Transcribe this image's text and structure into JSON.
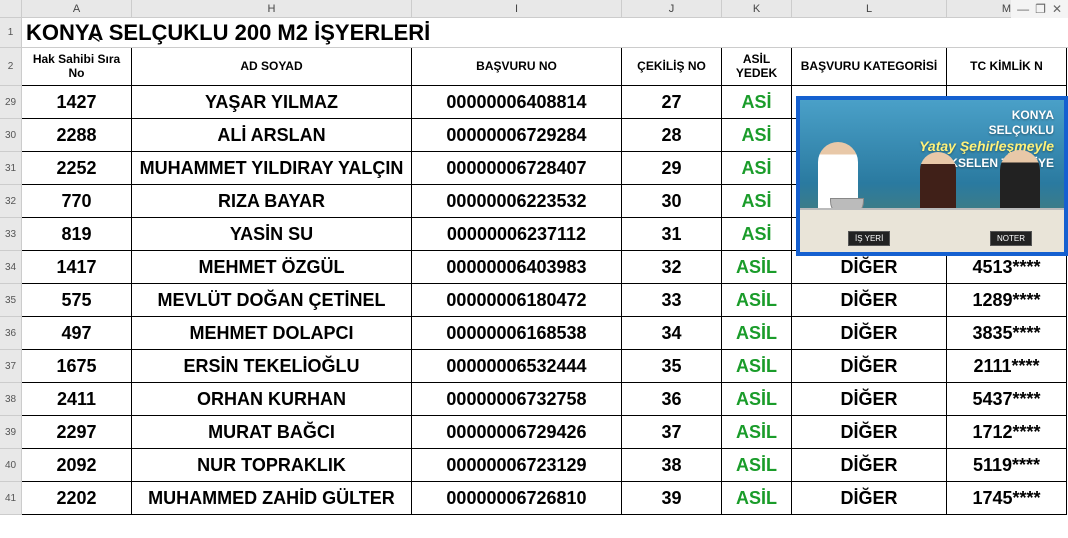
{
  "window": {
    "minimize": "—",
    "close": "✕",
    "expand": "❐"
  },
  "columns": {
    "letters": [
      "A",
      "H",
      "I",
      "J",
      "K",
      "L",
      "M"
    ]
  },
  "title": "KONYA SELÇUKLU 200 M2 İŞYERLERİ",
  "headers": {
    "sira": "Hak Sahibi Sıra No",
    "ad": "AD SOYAD",
    "basvuru": "BAŞVURU NO",
    "cekilis": "ÇEKİLİŞ NO",
    "asil": "ASİL YEDEK",
    "kategori": "BAŞVURU KATEGORİSİ",
    "tc": "TC KİMLİK N"
  },
  "rowNumbers": [
    "1",
    "2",
    "29",
    "30",
    "31",
    "32",
    "33",
    "34",
    "35",
    "36",
    "37",
    "38",
    "39",
    "40",
    "41"
  ],
  "rows": [
    {
      "sira": "1427",
      "ad": "YAŞAR YILMAZ",
      "basvuru": "00000006408814",
      "cekilis": "27",
      "asil": "ASİ",
      "kategori": "",
      "tc": ""
    },
    {
      "sira": "2288",
      "ad": "ALİ ARSLAN",
      "basvuru": "00000006729284",
      "cekilis": "28",
      "asil": "ASİ",
      "kategori": "",
      "tc": ""
    },
    {
      "sira": "2252",
      "ad": "MUHAMMET YILDIRAY YALÇIN",
      "basvuru": "00000006728407",
      "cekilis": "29",
      "asil": "ASİ",
      "kategori": "",
      "tc": ""
    },
    {
      "sira": "770",
      "ad": "RIZA BAYAR",
      "basvuru": "00000006223532",
      "cekilis": "30",
      "asil": "ASİ",
      "kategori": "",
      "tc": ""
    },
    {
      "sira": "819",
      "ad": "YASİN SU",
      "basvuru": "00000006237112",
      "cekilis": "31",
      "asil": "ASİ",
      "kategori": "",
      "tc": ""
    },
    {
      "sira": "1417",
      "ad": "MEHMET ÖZGÜL",
      "basvuru": "00000006403983",
      "cekilis": "32",
      "asil": "ASİL",
      "kategori": "DİĞER",
      "tc": "4513****"
    },
    {
      "sira": "575",
      "ad": "MEVLÜT DOĞAN ÇETİNEL",
      "basvuru": "00000006180472",
      "cekilis": "33",
      "asil": "ASİL",
      "kategori": "DİĞER",
      "tc": "1289****"
    },
    {
      "sira": "497",
      "ad": "MEHMET DOLAPCI",
      "basvuru": "00000006168538",
      "cekilis": "34",
      "asil": "ASİL",
      "kategori": "DİĞER",
      "tc": "3835****"
    },
    {
      "sira": "1675",
      "ad": "ERSİN TEKELİOĞLU",
      "basvuru": "00000006532444",
      "cekilis": "35",
      "asil": "ASİL",
      "kategori": "DİĞER",
      "tc": "2111****"
    },
    {
      "sira": "2411",
      "ad": "ORHAN KURHAN",
      "basvuru": "00000006732758",
      "cekilis": "36",
      "asil": "ASİL",
      "kategori": "DİĞER",
      "tc": "5437****"
    },
    {
      "sira": "2297",
      "ad": "MURAT BAĞCI",
      "basvuru": "00000006729426",
      "cekilis": "37",
      "asil": "ASİL",
      "kategori": "DİĞER",
      "tc": "1712****"
    },
    {
      "sira": "2092",
      "ad": "NUR TOPRAKLIK",
      "basvuru": "00000006723129",
      "cekilis": "38",
      "asil": "ASİL",
      "kategori": "DİĞER",
      "tc": "5119****"
    },
    {
      "sira": "2202",
      "ad": "MUHAMMED ZAHİD GÜLTER",
      "basvuru": "00000006726810",
      "cekilis": "39",
      "asil": "ASİL",
      "kategori": "DİĞER",
      "tc": "1745****"
    }
  ],
  "video": {
    "line1": "KONYA",
    "line2": "SELÇUKLU",
    "slogan1": "Yatay Şehirleşmeyle",
    "slogan2": "YÜKSELEN TÜRKİYE",
    "label1": "İŞ YERİ",
    "label2": "NOTER"
  },
  "colors": {
    "asil": "#1a9c2a",
    "border": "#000000",
    "videoBorder": "#1560d0"
  }
}
